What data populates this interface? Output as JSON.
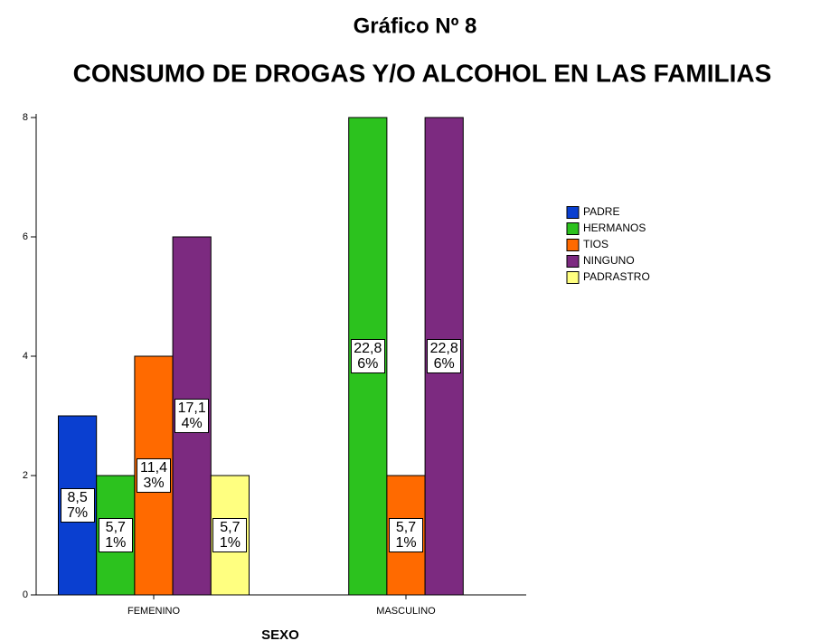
{
  "chart_data": {
    "type": "bar",
    "title": "Gráfico Nº 8",
    "subtitle": "CONSUMO DE DROGAS Y/O ALCOHOL EN LAS FAMILIAS",
    "x_label": "SEXO",
    "categories": [
      "FEMENINO",
      "MASCULINO"
    ],
    "series": [
      {
        "name": "PADRE",
        "color": "#0a3fd0",
        "values": [
          3,
          null
        ],
        "percent_labels": [
          "8,57%",
          null
        ]
      },
      {
        "name": "HERMANOS",
        "color": "#2cc21e",
        "values": [
          2,
          8
        ],
        "percent_labels": [
          "5,71%",
          "22,86%"
        ]
      },
      {
        "name": "TIOS",
        "color": "#ff6a00",
        "values": [
          4,
          2
        ],
        "percent_labels": [
          "11,43%",
          "5,71%"
        ]
      },
      {
        "name": "NINGUNO",
        "color": "#7c2a80",
        "values": [
          6,
          8
        ],
        "percent_labels": [
          "17,14%",
          "22,86%"
        ]
      },
      {
        "name": "PADRASTRO",
        "color": "#ffff80",
        "values": [
          2,
          null
        ],
        "percent_labels": [
          "5,71%",
          null
        ]
      }
    ],
    "ylim": [
      0,
      8
    ],
    "yticks": [
      0,
      2,
      4,
      6,
      8
    ],
    "legend": "right"
  }
}
